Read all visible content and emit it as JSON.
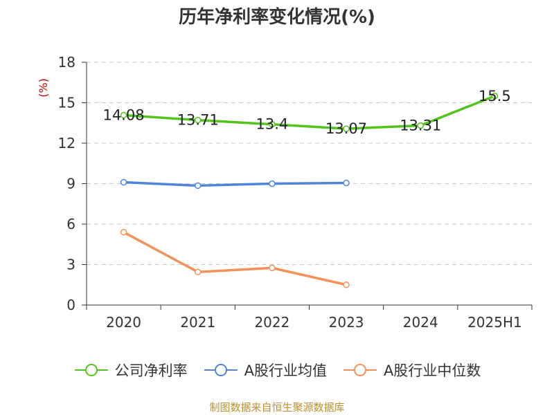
{
  "title": "历年净利率变化情况(%)",
  "source": "制图数据来自恒生聚源数据库",
  "chart_data": {
    "type": "line",
    "categories": [
      "2020",
      "2021",
      "2022",
      "2023",
      "2024",
      "2025H1"
    ],
    "ylabel": "(%)",
    "ylim": [
      0,
      18
    ],
    "yticks": [
      0,
      3,
      6,
      9,
      12,
      15,
      18
    ],
    "grid": true,
    "legend_position": "bottom",
    "series": [
      {
        "name": "公司净利率",
        "color": "#52c41a",
        "values": [
          14.08,
          13.71,
          13.4,
          13.07,
          13.31,
          15.5
        ],
        "labels": [
          "14.08",
          "13.71",
          "13.4",
          "13.07",
          "13.31",
          "15.5"
        ]
      },
      {
        "name": "A股行业均值",
        "color": "#4f84d9",
        "values": [
          9.1,
          8.85,
          9.0,
          9.05,
          null,
          null
        ]
      },
      {
        "name": "A股行业中位数",
        "color": "#f4905a",
        "values": [
          5.4,
          2.45,
          2.75,
          1.5,
          null,
          null
        ]
      }
    ]
  }
}
